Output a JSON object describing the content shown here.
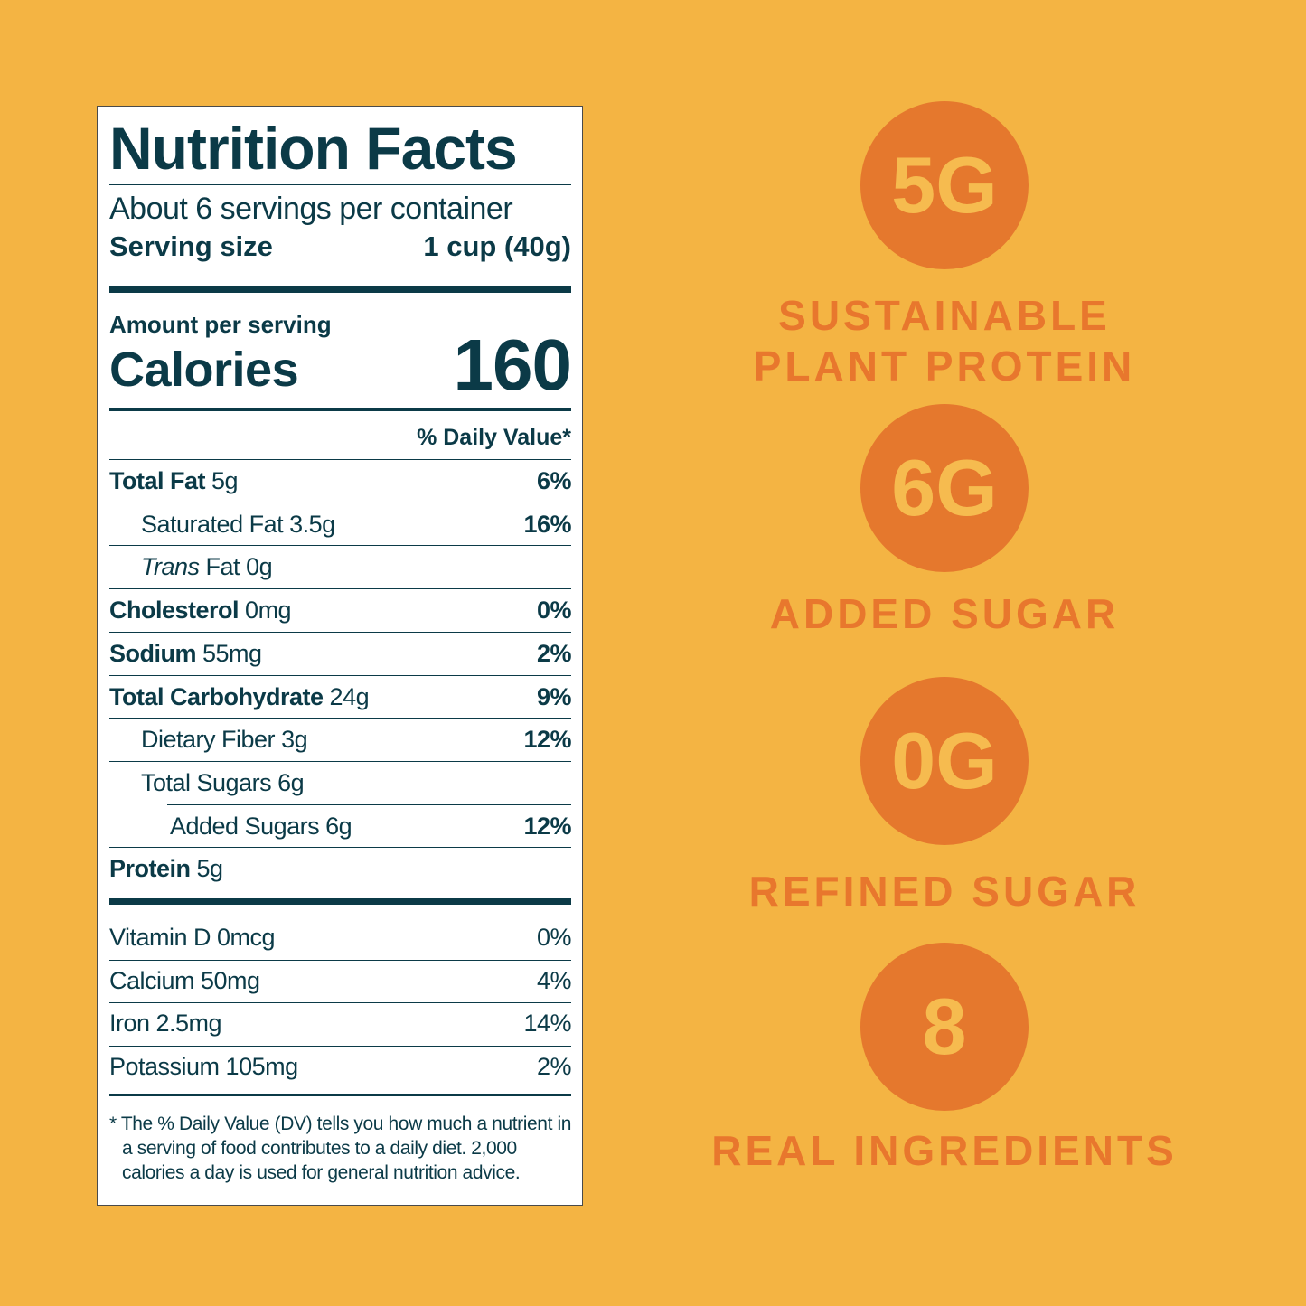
{
  "label": {
    "title": "Nutrition Facts",
    "servings": "About 6 servings per container",
    "serving_size_label": "Serving size",
    "serving_size_value": "1 cup (40g)",
    "amount_per_serving": "Amount per serving",
    "calories_label": "Calories",
    "calories_value": 160,
    "daily_value_header": "% Daily Value*",
    "nutrients": [
      {
        "name": "Total Fat",
        "amount": "5g",
        "dv": "6%"
      },
      {
        "name": "Saturated Fat",
        "amount": "3.5g",
        "dv": "16%"
      },
      {
        "name_italic": "Trans",
        "name": "Fat",
        "amount": "0g"
      },
      {
        "name": "Cholesterol",
        "amount": "0mg",
        "dv": "0%"
      },
      {
        "name": "Sodium",
        "amount": "55mg",
        "dv": "2%"
      },
      {
        "name": "Total Carbohydrate",
        "amount": "24g",
        "dv": "9%"
      },
      {
        "name": "Dietary Fiber",
        "amount": "3g",
        "dv": "12%"
      },
      {
        "name": "Total Sugars",
        "amount": "6g"
      },
      {
        "name": "Added Sugars",
        "amount": "6g",
        "dv": "12%"
      },
      {
        "name": "Protein",
        "amount": "5g"
      }
    ],
    "vitamins": [
      {
        "name": "Vitamin D 0mcg",
        "dv": "0%"
      },
      {
        "name": "Calcium 50mg",
        "dv": "4%"
      },
      {
        "name": "Iron 2.5mg",
        "dv": "14%"
      },
      {
        "name": "Potassium 105mg",
        "dv": "2%"
      }
    ],
    "footnote": "* The % Daily Value (DV) tells you how much a nutrient in a serving of food contributes to a daily diet. 2,000 calories a day is used for general nutrition advice."
  },
  "highlights": [
    {
      "value": "5G",
      "lines": [
        "SUSTAINABLE",
        "PLANT PROTEIN"
      ]
    },
    {
      "value": "6G",
      "lines": [
        "ADDED SUGAR"
      ]
    },
    {
      "value": "0G",
      "lines": [
        "REFINED SUGAR"
      ]
    },
    {
      "value": "8",
      "lines": [
        "REAL INGREDIENTS"
      ]
    }
  ]
}
